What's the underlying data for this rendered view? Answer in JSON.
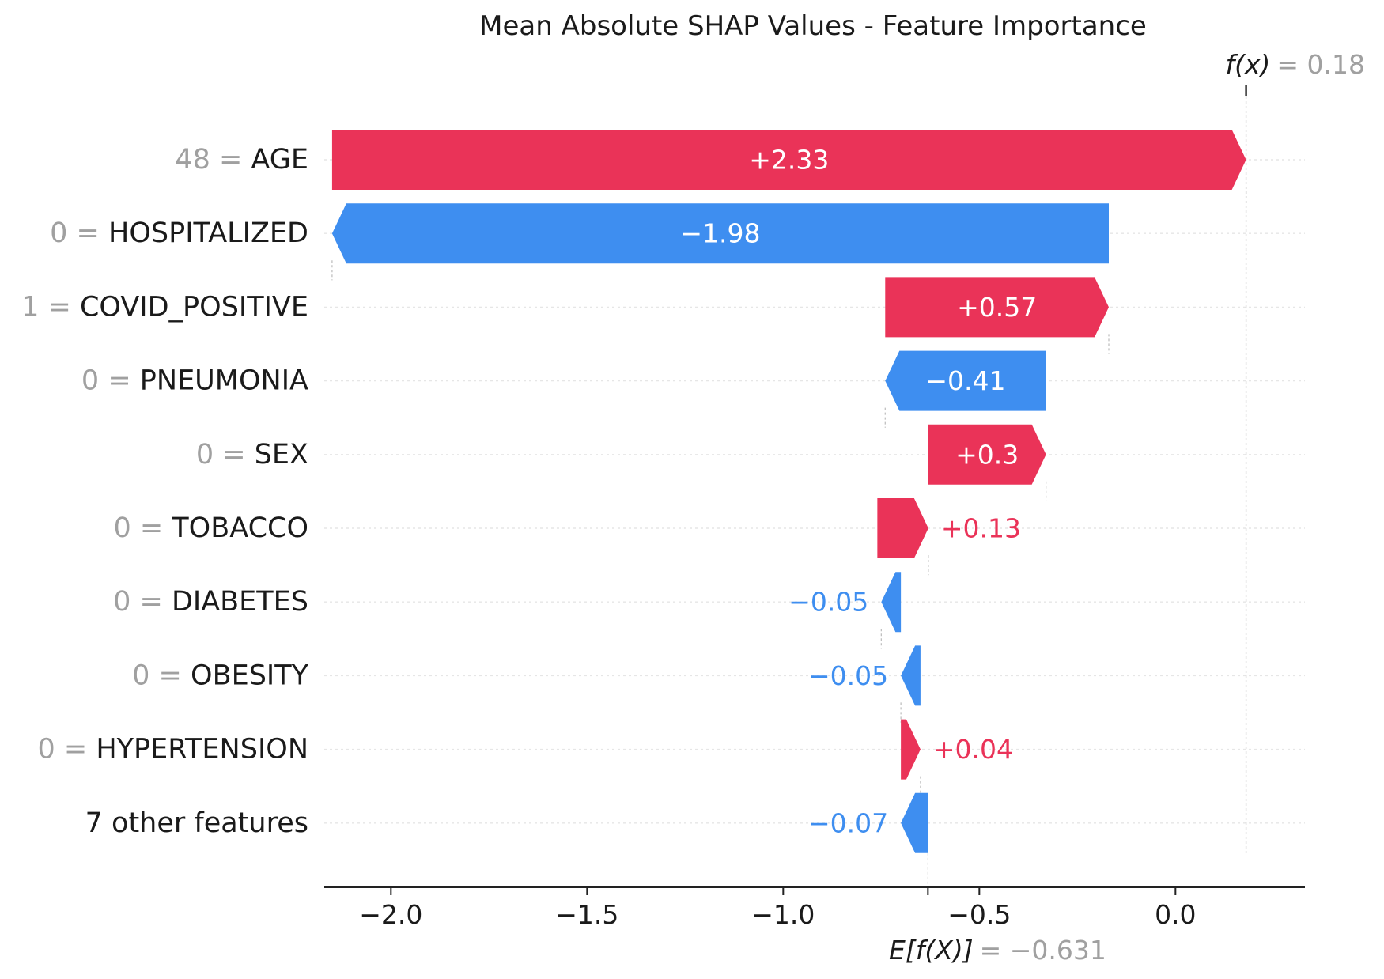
{
  "chart_data": {
    "type": "waterfall",
    "title": "Mean Absolute SHAP Values - Feature Importance",
    "base_value": -0.631,
    "base_label": "E[f(X)]",
    "base_value_text": "= −0.631",
    "output_value": 0.18,
    "output_label": "f(x)",
    "output_value_text": "= 0.18",
    "xlim": [
      -2.17,
      0.33
    ],
    "xticks": [
      -2.0,
      -1.5,
      -1.0,
      -0.5,
      0.0
    ],
    "xtick_labels": [
      "−2.0",
      "−1.5",
      "−1.0",
      "−0.5",
      "0.0"
    ],
    "features": [
      {
        "value_text": "48 =",
        "name": "AGE",
        "start": -2.15,
        "end": 0.18,
        "label": "+2.33"
      },
      {
        "value_text": "0 =",
        "name": "HOSPITALIZED",
        "start": -0.17,
        "end": -2.15,
        "label": "−1.98"
      },
      {
        "value_text": "1 =",
        "name": "COVID_POSITIVE",
        "start": -0.74,
        "end": -0.17,
        "label": "+0.57"
      },
      {
        "value_text": "0 =",
        "name": "PNEUMONIA",
        "start": -0.33,
        "end": -0.74,
        "label": "−0.41"
      },
      {
        "value_text": "0 =",
        "name": "SEX",
        "start": -0.63,
        "end": -0.33,
        "label": "+0.3"
      },
      {
        "value_text": "0 =",
        "name": "TOBACCO",
        "start": -0.76,
        "end": -0.63,
        "label": "+0.13"
      },
      {
        "value_text": "0 =",
        "name": "DIABETES",
        "start": -0.7,
        "end": -0.75,
        "label": "−0.05"
      },
      {
        "value_text": "0 =",
        "name": "OBESITY",
        "start": -0.65,
        "end": -0.7,
        "label": "−0.05"
      },
      {
        "value_text": "0 =",
        "name": "HYPERTENSION",
        "start": -0.7,
        "end": -0.65,
        "label": "+0.04"
      },
      {
        "value_text": "",
        "name": "7 other features",
        "start": -0.63,
        "end": -0.7,
        "label": "−0.07"
      }
    ],
    "colors": {
      "positive": "#ea3358",
      "negative": "#3e8ef0"
    }
  }
}
